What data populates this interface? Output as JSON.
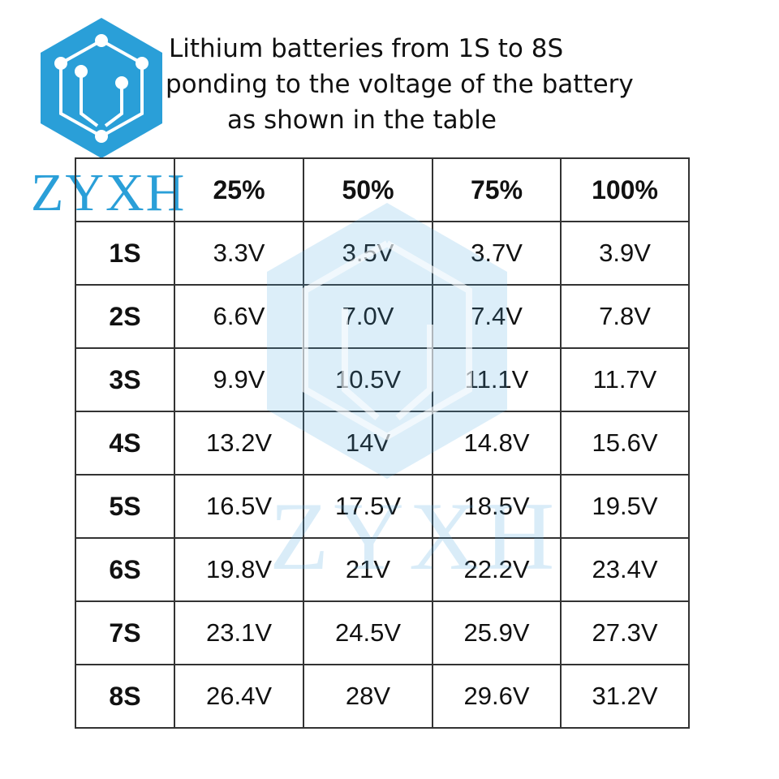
{
  "logo": {
    "text": "ZYXH"
  },
  "title": {
    "lines": [
      "Lithium batteries from 1S to 8S",
      "ponding to the voltage of the battery",
      "as shown in the table"
    ]
  },
  "table": {
    "header": [
      "25%",
      "50%",
      "75%",
      "100%"
    ],
    "rows": [
      {
        "label": "1S",
        "cells": [
          "3.3V",
          "3.5V",
          "3.7V",
          "3.9V"
        ]
      },
      {
        "label": "2S",
        "cells": [
          "6.6V",
          "7.0V",
          "7.4V",
          "7.8V"
        ]
      },
      {
        "label": "3S",
        "cells": [
          "9.9V",
          "10.5V",
          "11.1V",
          "11.7V"
        ]
      },
      {
        "label": "4S",
        "cells": [
          "13.2V",
          "14V",
          "14.8V",
          "15.6V"
        ]
      },
      {
        "label": "5S",
        "cells": [
          "16.5V",
          "17.5V",
          "18.5V",
          "19.5V"
        ]
      },
      {
        "label": "6S",
        "cells": [
          "19.8V",
          "21V",
          "22.2V",
          "23.4V"
        ]
      },
      {
        "label": "7S",
        "cells": [
          "23.1V",
          "24.5V",
          "25.9V",
          "27.3V"
        ]
      },
      {
        "label": "8S",
        "cells": [
          "26.4V",
          "28V",
          "29.6V",
          "31.2V"
        ]
      }
    ]
  },
  "watermark": {
    "text": "ZYXH"
  }
}
